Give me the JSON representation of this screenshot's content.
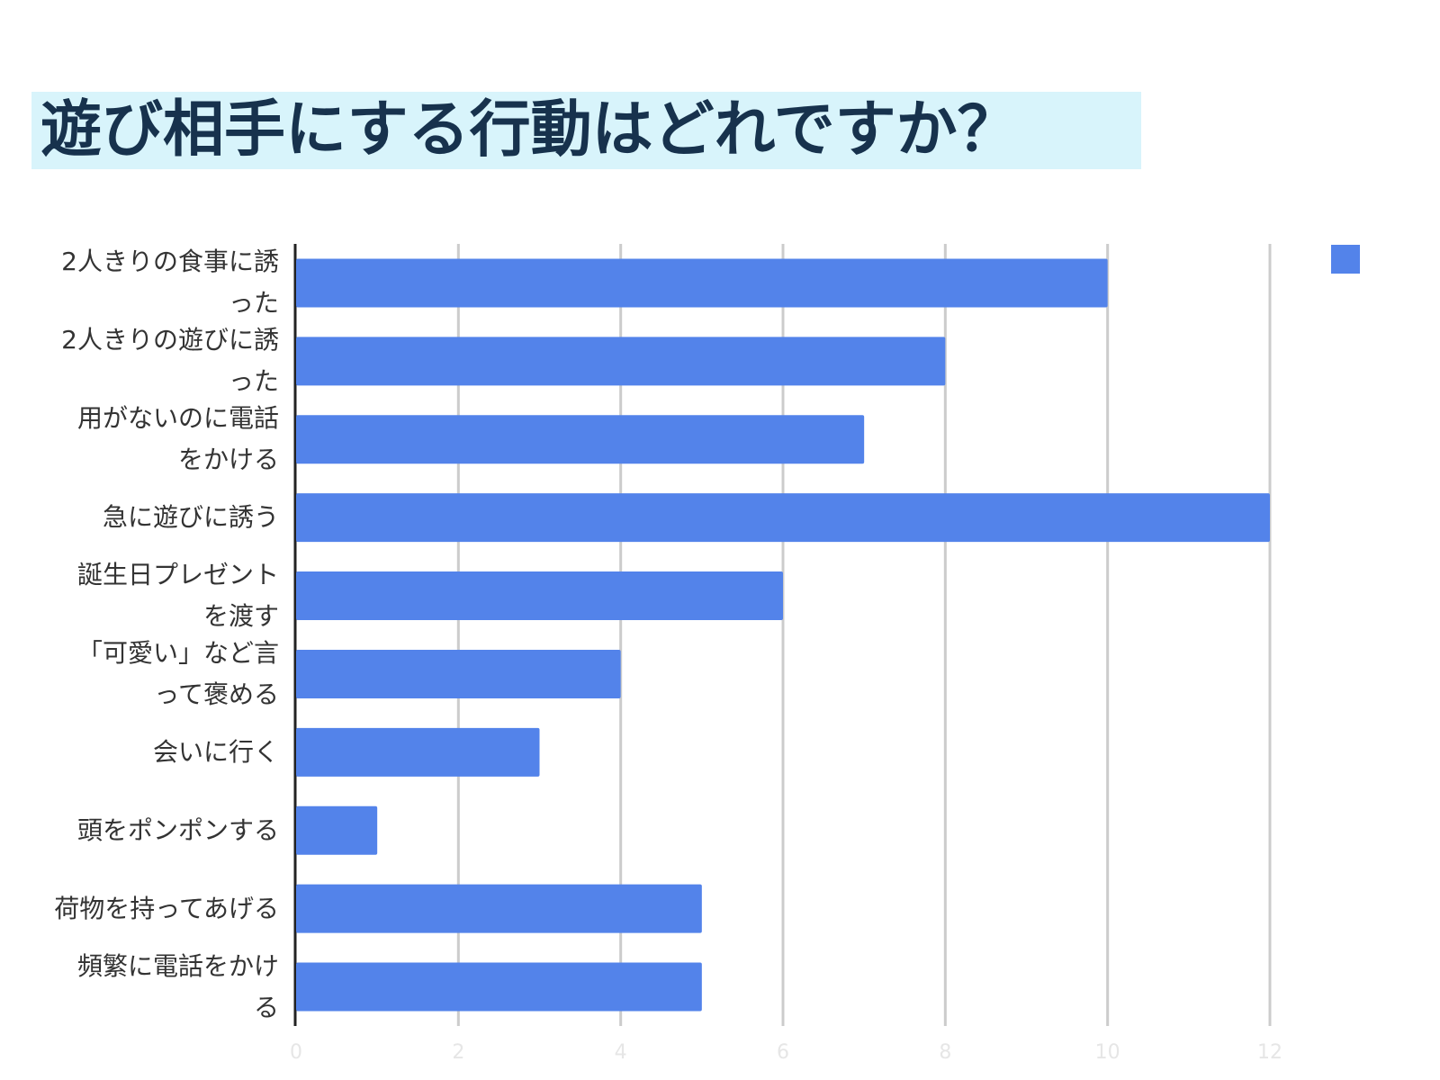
{
  "chart_data": {
    "type": "bar",
    "orientation": "horizontal",
    "title": "遊び相手にする行動はどれですか？",
    "categories": [
      "2人きりの食事に誘った",
      "2人きりの遊びに誘った",
      "用がないのに電話をかける",
      "急に遊びに誘う",
      "誕生日プレゼントを渡す",
      "「可愛い」など言って褒める",
      "会いに行く",
      "頭をポンポンする",
      "荷物を持ってあげる",
      "頻繁に電話をかける"
    ],
    "values": [
      10,
      8,
      7,
      12,
      6,
      4,
      3,
      1,
      5,
      5
    ],
    "color": "#5383ea",
    "xlim": [
      0,
      12
    ],
    "xticks": [
      0,
      2,
      4,
      6,
      8,
      10,
      12
    ],
    "grid": true
  }
}
